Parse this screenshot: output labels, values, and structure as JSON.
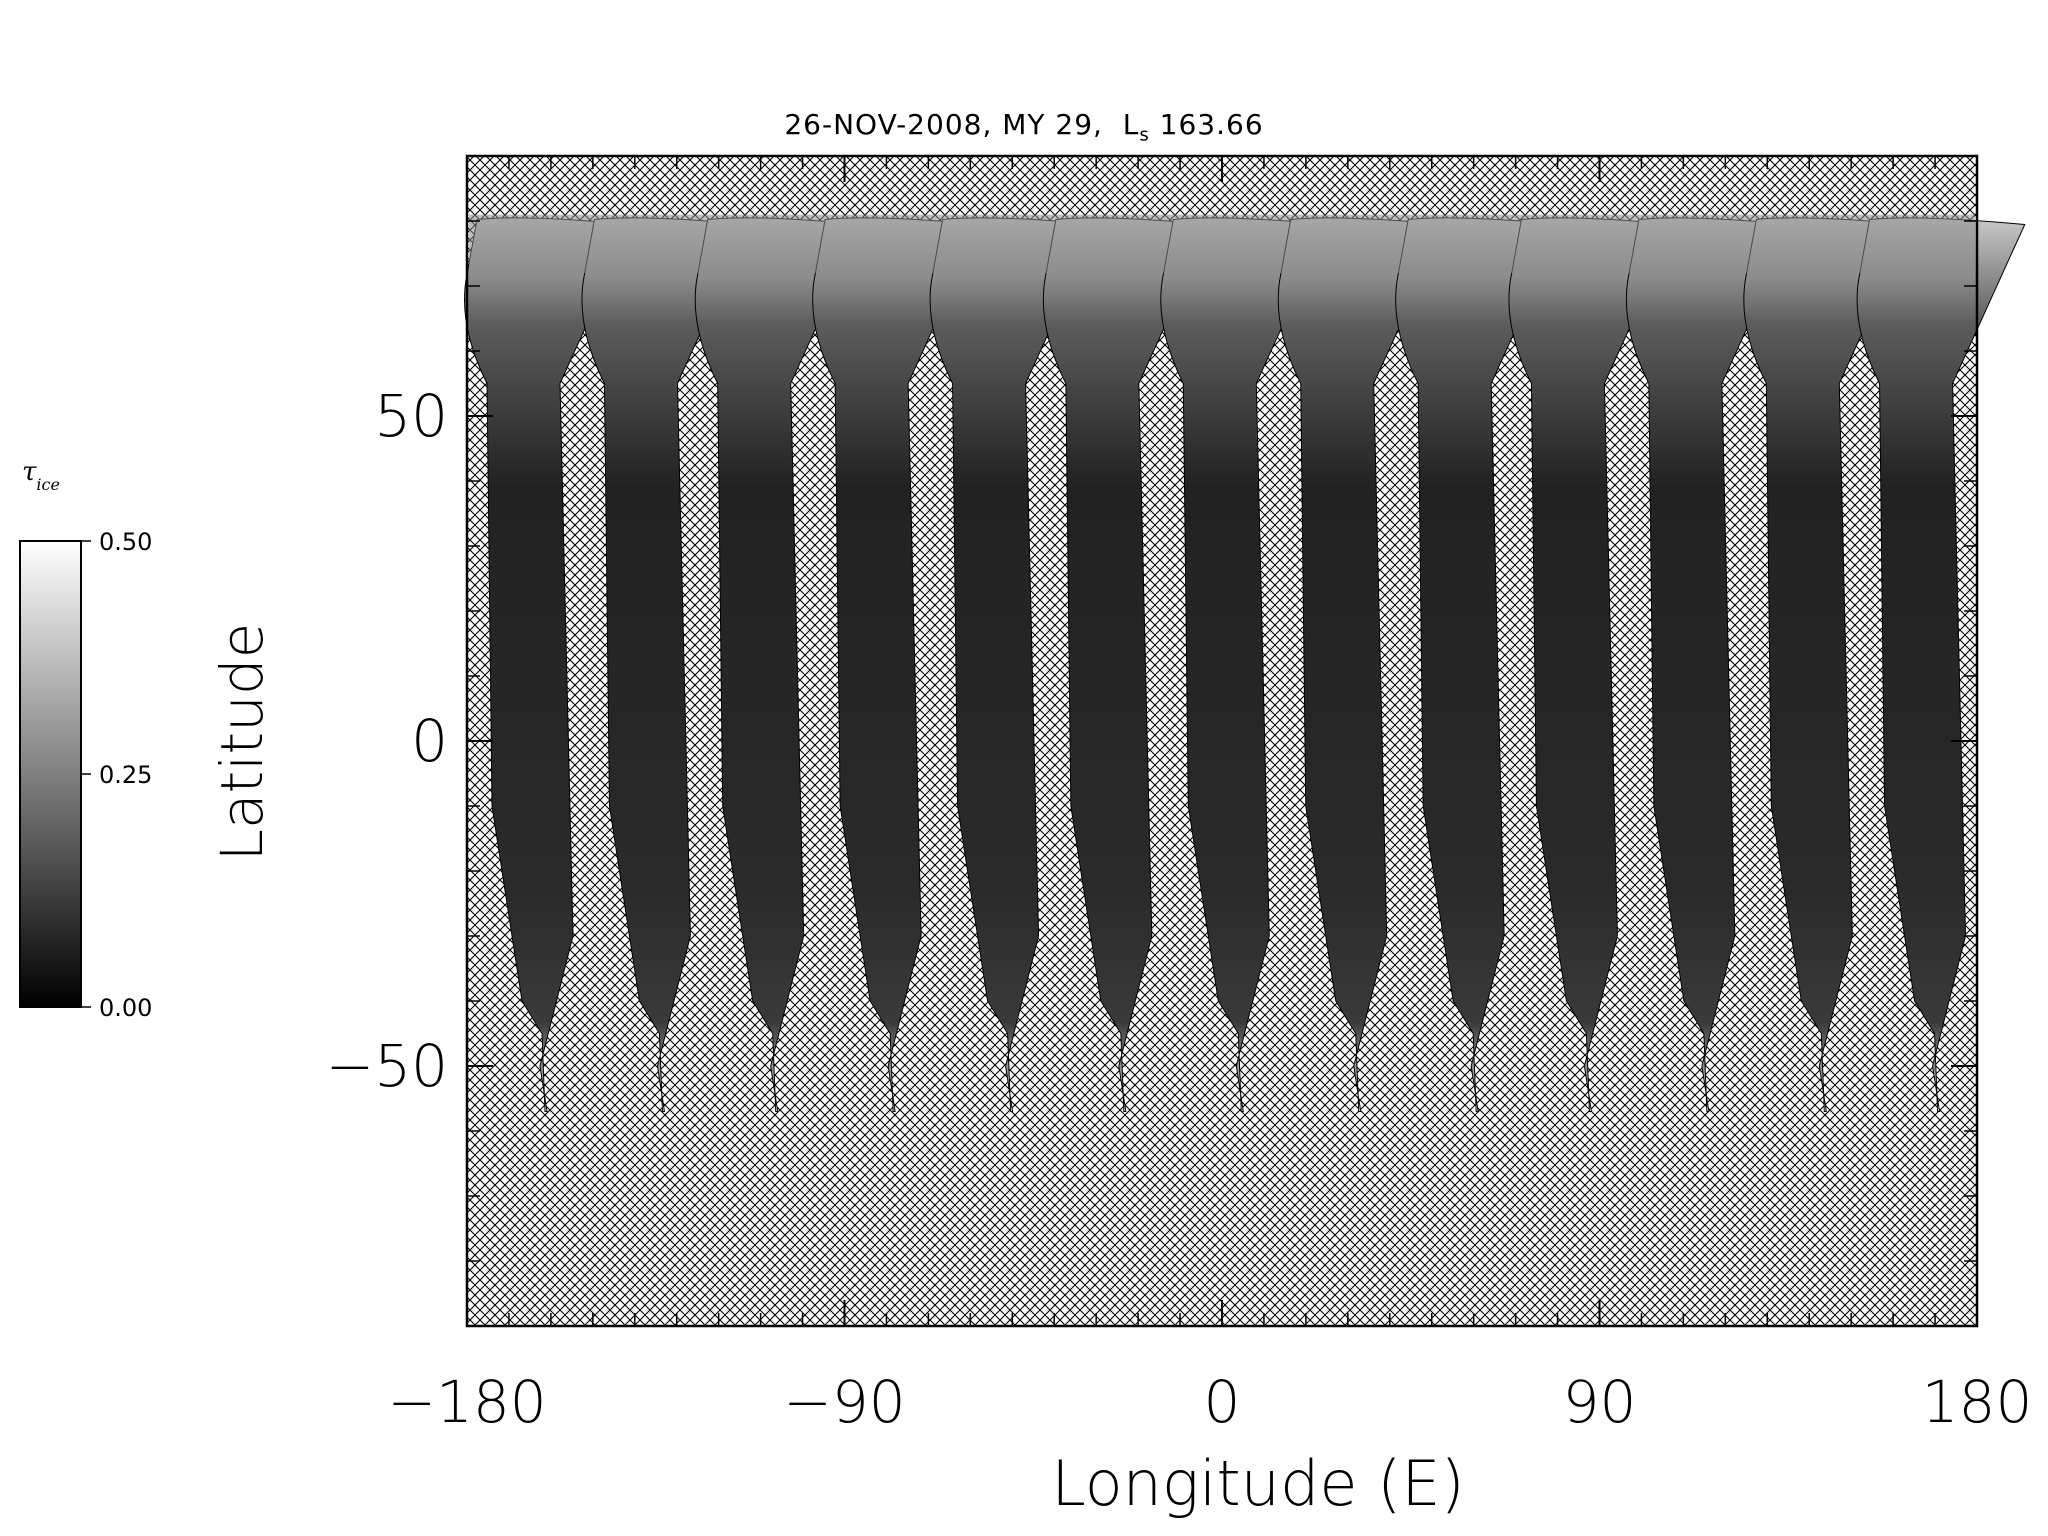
{
  "chart_data": {
    "type": "heatmap",
    "title": {
      "date": "26-NOV-2008, MY 29,",
      "ls_label": "L",
      "ls_sub": "s",
      "ls_value": "163.66"
    },
    "xlabel": "Longitude (E)",
    "ylabel": "Latitude",
    "xlim": [
      -180,
      180
    ],
    "ylim": [
      -90,
      90
    ],
    "x_ticks": [
      -180,
      -90,
      0,
      90,
      180
    ],
    "x_tick_labels": [
      "−180",
      "−90",
      "0",
      "90",
      "180"
    ],
    "y_ticks": [
      50,
      0,
      -50
    ],
    "y_tick_labels": [
      "50",
      "0",
      "−50"
    ],
    "grid": false,
    "colorbar": {
      "label": "τ",
      "label_sub": "ice",
      "min": 0.0,
      "max": 0.5,
      "tick_values": [
        0.5,
        0.25,
        0.0
      ],
      "tick_labels": [
        "0.50",
        "0.25",
        "0.00"
      ],
      "colormap": "grayscale"
    },
    "swaths": {
      "count": 13,
      "west_edge_longitudes": [
        -180,
        -152,
        -125,
        -97,
        -69,
        -42,
        -14,
        14,
        42,
        69,
        97,
        125,
        152
      ],
      "lat_top": 81,
      "lat_bottom": -57,
      "coverage_note": ""
    },
    "no_data_pattern": "crosshatch"
  },
  "colors": {
    "background": "#ffffff",
    "axis": "#000000",
    "hatch": "#000000",
    "swath_dark": "#1c1c1c",
    "swath_light": "#d8d8d8"
  }
}
